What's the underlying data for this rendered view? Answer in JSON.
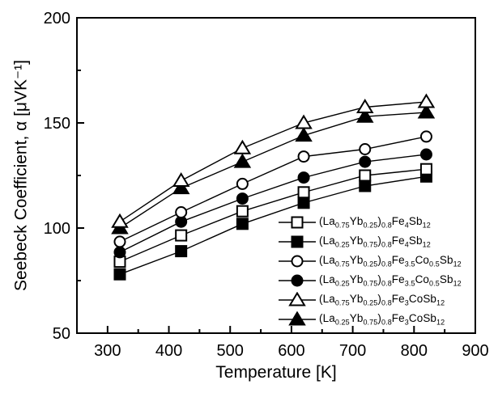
{
  "figure": {
    "background": "#ffffff",
    "frame_color": "#000000",
    "line_color": "#000000"
  },
  "axes": {
    "x": {
      "label": "Temperature [K]",
      "min": 250,
      "max": 900,
      "major_ticks": [
        300,
        400,
        500,
        600,
        700,
        800,
        900
      ],
      "minor_ticks": [
        350,
        450,
        550,
        650,
        750,
        850
      ]
    },
    "y": {
      "label": "Seebeck Coefficient, α [μVK⁻¹]",
      "min": 50,
      "max": 200,
      "major_ticks": [
        50,
        100,
        150,
        200
      ],
      "minor_ticks": [
        75,
        125,
        175
      ]
    }
  },
  "chart_data": {
    "type": "line",
    "title": "",
    "xlabel": "Temperature [K]",
    "ylabel": "Seebeck Coefficient, α [μVK⁻¹]",
    "xlim": [
      250,
      900
    ],
    "ylim": [
      50,
      200
    ],
    "grid": false,
    "legend_position": "inside lower-right",
    "x": [
      320,
      420,
      520,
      620,
      720,
      820
    ],
    "series": [
      {
        "name": "(La_{0.75}Yb_{0.25})_{0.8}Fe_{4}Sb_{12}",
        "marker": "square-open",
        "values": [
          84,
          96.5,
          108,
          117,
          125,
          128
        ]
      },
      {
        "name": "(La_{0.25}Yb_{0.75})_{0.8}Fe_{4}Sb_{12}",
        "marker": "square-filled",
        "values": [
          78,
          89,
          102,
          112,
          120,
          124.5
        ]
      },
      {
        "name": "(La_{0.75}Yb_{0.25})_{0.8}Fe_{3.5}Co_{0.5}Sb_{12}",
        "marker": "circle-open",
        "values": [
          93.5,
          107.5,
          121,
          134,
          137.5,
          143.5
        ]
      },
      {
        "name": "(La_{0.25}Yb_{0.75})_{0.8}Fe_{3.5}Co_{0.5}Sb_{12}",
        "marker": "circle-filled",
        "values": [
          88.5,
          103,
          114,
          124,
          131.5,
          135
        ]
      },
      {
        "name": "(La_{0.75}Yb_{0.25})_{0.8}Fe_{3}CoSb_{12}",
        "marker": "triangle-open",
        "values": [
          103,
          122.5,
          138,
          150,
          157.5,
          160
        ]
      },
      {
        "name": "(La_{0.25}Yb_{0.75})_{0.8}Fe_{3}CoSb_{12}",
        "marker": "triangle-filled",
        "values": [
          100,
          119,
          131.5,
          144,
          153,
          155
        ]
      }
    ]
  }
}
